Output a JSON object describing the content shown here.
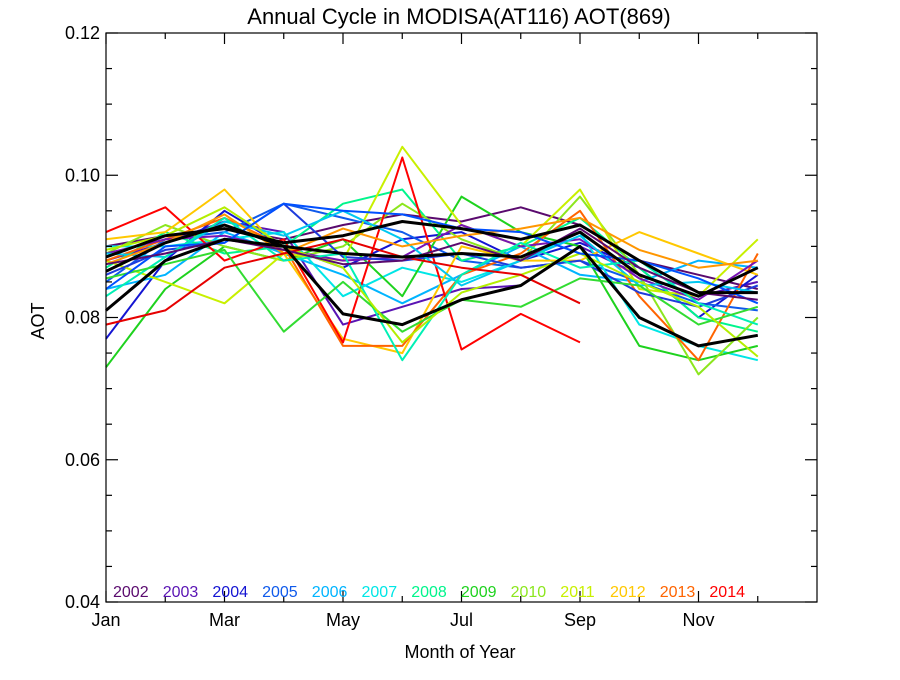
{
  "chart_data": {
    "type": "line",
    "title": "Annual Cycle in MODISA(AT116) AOT(869)",
    "xlabel": "Month of Year",
    "ylabel": "AOT",
    "xlim": [
      1,
      13
    ],
    "ylim": [
      0.04,
      0.12
    ],
    "x": [
      1,
      2,
      3,
      4,
      5,
      6,
      7,
      8,
      9,
      10,
      11,
      12
    ],
    "x_ticks": [
      {
        "value": 1,
        "label": "Jan"
      },
      {
        "value": 3,
        "label": "Mar"
      },
      {
        "value": 5,
        "label": "May"
      },
      {
        "value": 7,
        "label": "Jul"
      },
      {
        "value": 9,
        "label": "Sep"
      },
      {
        "value": 11,
        "label": "Nov"
      }
    ],
    "y_ticks": [
      {
        "value": 0.04,
        "label": "0.04"
      },
      {
        "value": 0.06,
        "label": "0.06"
      },
      {
        "value": 0.08,
        "label": "0.08"
      },
      {
        "value": 0.1,
        "label": "0.10"
      },
      {
        "value": 0.12,
        "label": "0.12"
      }
    ],
    "grid": false,
    "legend_position": "bottom-left inside plot",
    "series": [
      {
        "name": "2002",
        "color": "#5a0a6e",
        "values": [
          0.09,
          0.0915,
          0.0925,
          0.091,
          0.093,
          0.0945,
          0.0935,
          0.0955,
          0.093,
          0.088,
          0.086,
          0.084
        ]
      },
      {
        "name": "2003",
        "color": "#5a14b4",
        "values": [
          0.088,
          0.0905,
          0.0935,
          0.092,
          0.079,
          0.0815,
          0.084,
          0.0845,
          0.09,
          0.086,
          0.083,
          0.085
        ]
      },
      {
        "name": "2004",
        "color": "#1414d2",
        "values": [
          0.077,
          0.088,
          0.095,
          0.09,
          0.087,
          0.091,
          0.092,
          0.088,
          0.0905,
          0.087,
          0.08,
          0.086
        ]
      },
      {
        "name": "2005",
        "color": "#0f5aeb",
        "values": [
          0.085,
          0.091,
          0.092,
          0.096,
          0.094,
          0.092,
          0.088,
          0.087,
          0.088,
          0.085,
          0.082,
          0.081
        ]
      },
      {
        "name": "2006",
        "color": "#00b4ff",
        "values": [
          0.084,
          0.086,
          0.092,
          0.089,
          0.086,
          0.082,
          0.086,
          0.09,
          0.086,
          0.085,
          0.088,
          0.087
        ]
      },
      {
        "name": "2007",
        "color": "#00e6e6",
        "values": [
          0.09,
          0.09,
          0.091,
          0.092,
          0.083,
          0.087,
          0.085,
          0.088,
          0.092,
          0.079,
          0.076,
          0.074
        ]
      },
      {
        "name": "2008",
        "color": "#00f58c",
        "values": [
          0.087,
          0.092,
          0.089,
          0.09,
          0.096,
          0.098,
          0.088,
          0.09,
          0.094,
          0.087,
          0.08,
          0.078
        ]
      },
      {
        "name": "2009",
        "color": "#1ed21e",
        "values": [
          0.073,
          0.084,
          0.09,
          0.088,
          0.091,
          0.083,
          0.097,
          0.092,
          0.09,
          0.076,
          0.074,
          0.076
        ]
      },
      {
        "name": "2010",
        "color": "#8ce61e",
        "values": [
          0.089,
          0.093,
          0.09,
          0.088,
          0.09,
          0.096,
          0.091,
          0.088,
          0.097,
          0.086,
          0.072,
          0.08
        ]
      },
      {
        "name": "2011",
        "color": "#c8f000",
        "values": [
          0.088,
          0.085,
          0.082,
          0.089,
          0.088,
          0.104,
          0.093,
          0.09,
          0.098,
          0.084,
          0.083,
          0.091
        ]
      },
      {
        "name": "2012",
        "color": "#ffc800",
        "values": [
          0.091,
          0.092,
          0.098,
          0.089,
          0.077,
          0.075,
          0.09,
          0.088,
          0.088,
          0.092,
          0.089,
          0.086
        ]
      },
      {
        "name": "2013",
        "color": "#ff6400",
        "values": [
          0.088,
          0.091,
          0.094,
          0.09,
          0.076,
          0.076,
          0.086,
          0.089,
          0.095,
          0.083,
          0.074,
          0.089
        ]
      },
      {
        "name": "2014",
        "color": "#ff0000",
        "values": [
          0.092,
          0.0955,
          0.088,
          0.091,
          0.0765,
          0.1025,
          0.0755,
          0.0805,
          0.0765,
          null,
          null,
          null
        ]
      },
      {
        "name": "",
        "color": "#000000",
        "values": [
          0.081,
          0.088,
          0.091,
          0.09,
          0.0805,
          0.079,
          0.0825,
          0.0845,
          0.09,
          0.08,
          0.076,
          0.0775
        ]
      },
      {
        "name": "",
        "color": "#000000",
        "values": [
          0.0865,
          0.0905,
          0.093,
          0.09,
          0.089,
          0.0885,
          0.089,
          0.0885,
          0.092,
          0.086,
          0.083,
          0.087
        ]
      },
      {
        "name": "",
        "color": "#000000",
        "values": [
          0.0885,
          0.0915,
          0.0925,
          0.0905,
          0.0915,
          0.0935,
          0.0925,
          0.091,
          0.093,
          0.088,
          0.0835,
          0.0835
        ]
      },
      {
        "name": "",
        "color": "#7814b4",
        "values": [
          0.089,
          0.091,
          0.0915,
          0.0895,
          0.088,
          0.0885,
          0.093,
          0.09,
          0.091,
          0.0855,
          0.0825,
          0.088
        ]
      },
      {
        "name": "",
        "color": "#1e3cdc",
        "values": [
          0.086,
          0.0895,
          0.0905,
          0.096,
          0.0885,
          0.088,
          0.089,
          0.087,
          0.088,
          0.0835,
          0.0815,
          0.0845
        ]
      },
      {
        "name": "",
        "color": "#00c8f0",
        "values": [
          0.089,
          0.0885,
          0.0935,
          0.0915,
          0.095,
          0.091,
          0.0845,
          0.088,
          0.0915,
          0.0845,
          0.085,
          0.0835
        ]
      },
      {
        "name": "",
        "color": "#00f0b4",
        "values": [
          0.083,
          0.0885,
          0.094,
          0.088,
          0.089,
          0.074,
          0.086,
          0.0905,
          0.087,
          0.088,
          0.082,
          0.079
        ]
      },
      {
        "name": "",
        "color": "#32dc32",
        "values": [
          0.0855,
          0.0875,
          0.0895,
          0.078,
          0.085,
          0.078,
          0.0825,
          0.0815,
          0.0855,
          0.0845,
          0.079,
          0.0815
        ]
      },
      {
        "name": "",
        "color": "#b4ee00",
        "values": [
          0.0895,
          0.0915,
          0.0955,
          0.09,
          0.087,
          0.0765,
          0.0835,
          0.086,
          0.089,
          0.085,
          0.0815,
          0.0745
        ]
      },
      {
        "name": "",
        "color": "#ff9600",
        "values": [
          0.0875,
          0.0905,
          0.0945,
          0.089,
          0.0925,
          0.09,
          0.0915,
          0.0925,
          0.094,
          0.0895,
          0.087,
          0.088
        ]
      },
      {
        "name": "",
        "color": "#e60000",
        "values": [
          0.079,
          0.081,
          0.087,
          0.089,
          0.091,
          0.0885,
          0.087,
          0.086,
          0.082,
          null,
          null,
          null
        ]
      },
      {
        "name": "",
        "color": "#0050ff",
        "values": [
          0.084,
          0.09,
          0.0905,
          0.096,
          0.095,
          0.0945,
          0.0925,
          0.092,
          0.089,
          0.088,
          0.0855,
          0.082
        ]
      },
      {
        "name": "",
        "color": "#5a0a6e",
        "values": [
          0.0875,
          0.089,
          0.091,
          0.0895,
          0.0875,
          0.088,
          0.0905,
          0.088,
          0.0925,
          0.087,
          0.0835,
          0.0825
        ]
      }
    ]
  }
}
